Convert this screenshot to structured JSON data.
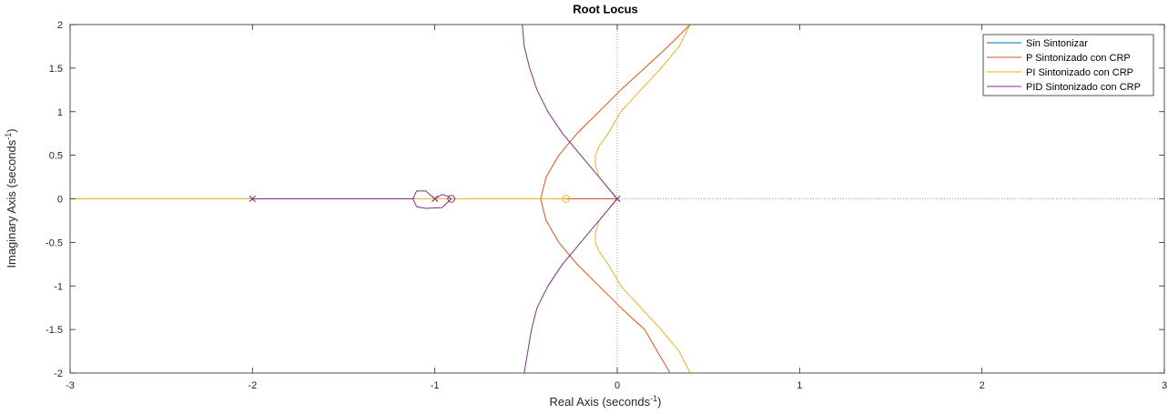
{
  "chart_data": {
    "type": "line",
    "title": "Root Locus",
    "xlabel": {
      "text": "Real Axis (seconds",
      "sup": "-1",
      "close": ")"
    },
    "ylabel": {
      "text": "Imaginary Axis (seconds",
      "sup": "-1",
      "close": ")"
    },
    "xlim": [
      -3,
      3
    ],
    "ylim": [
      -2,
      2
    ],
    "xticks": [
      -3,
      -2,
      -1,
      0,
      1,
      2,
      3
    ],
    "xtick_labels": [
      "-3",
      "-2",
      "-1",
      "0",
      "1",
      "2",
      "3"
    ],
    "yticks": [
      -2,
      -1.5,
      -1,
      -0.5,
      0,
      0.5,
      1,
      1.5,
      2
    ],
    "ytick_labels": [
      "-2",
      "-1.5",
      "-1",
      "-0.5",
      "0",
      "0.5",
      "1",
      "1.5",
      "2"
    ],
    "grid": false,
    "legend_position": "top-right",
    "colors": {
      "sin": "#0072BD",
      "p": "#D95319",
      "pi": "#EDB120",
      "pid": "#7E2F8E",
      "axis": "#262626",
      "zeroline": "#7f7f7f"
    },
    "series": [
      {
        "name": "Sin Sintonizar",
        "color": "#0072BD",
        "poles": [
          [
            -2,
            0
          ],
          [
            -1,
            0
          ],
          [
            0,
            0
          ]
        ],
        "zeros": [],
        "branches": [
          [
            [
              -2,
              0
            ],
            [
              -1,
              0
            ]
          ]
        ]
      },
      {
        "name": "P Sintonizado con CRP",
        "color": "#D95319",
        "poles": [
          [
            -2,
            0
          ],
          [
            -1,
            0
          ],
          [
            0,
            0
          ]
        ],
        "zeros": [],
        "branches": [
          [
            [
              -3,
              0
            ],
            [
              -2,
              0
            ]
          ],
          [
            [
              -2,
              0
            ],
            [
              -1,
              0
            ]
          ],
          [
            [
              -1,
              0
            ],
            [
              -0.42,
              0
            ]
          ],
          [
            [
              0,
              0
            ],
            [
              -0.42,
              0
            ]
          ],
          [
            [
              -0.42,
              0
            ],
            [
              -0.39,
              0.25
            ],
            [
              -0.32,
              0.5
            ],
            [
              -0.22,
              0.75
            ],
            [
              -0.1,
              1
            ],
            [
              0.02,
              1.25
            ],
            [
              0.15,
              1.5
            ],
            [
              0.28,
              1.75
            ],
            [
              0.4,
              2
            ]
          ],
          [
            [
              -0.42,
              0
            ],
            [
              -0.39,
              -0.25
            ],
            [
              -0.32,
              -0.5
            ],
            [
              -0.22,
              -0.75
            ],
            [
              -0.1,
              -1
            ],
            [
              0.02,
              -1.25
            ],
            [
              0.15,
              -1.5
            ],
            [
              0.22,
              -1.75
            ],
            [
              0.29,
              -2
            ]
          ]
        ]
      },
      {
        "name": "PI Sintonizado con CRP",
        "color": "#EDB120",
        "poles": [
          [
            -2,
            0
          ],
          [
            -1,
            0
          ],
          [
            0,
            0
          ]
        ],
        "zeros": [
          [
            -0.28,
            0
          ]
        ],
        "branches": [
          [
            [
              -3,
              0
            ],
            [
              -2,
              0
            ]
          ],
          [
            [
              -2,
              0
            ],
            [
              -1,
              0
            ]
          ],
          [
            [
              -1,
              0
            ],
            [
              -0.28,
              0
            ]
          ],
          [
            [
              0,
              0
            ],
            [
              -0.04,
              0.1
            ],
            [
              -0.1,
              0.25
            ],
            [
              -0.12,
              0.4
            ],
            [
              -0.12,
              0.5
            ],
            [
              -0.1,
              0.6
            ],
            [
              -0.05,
              0.75
            ],
            [
              0.02,
              1
            ],
            [
              0.13,
              1.25
            ],
            [
              0.24,
              1.5
            ],
            [
              0.34,
              1.75
            ],
            [
              0.4,
              2
            ]
          ],
          [
            [
              0,
              0
            ],
            [
              -0.04,
              -0.1
            ],
            [
              -0.1,
              -0.25
            ],
            [
              -0.12,
              -0.4
            ],
            [
              -0.12,
              -0.5
            ],
            [
              -0.1,
              -0.6
            ],
            [
              -0.05,
              -0.75
            ],
            [
              0.02,
              -1
            ],
            [
              0.13,
              -1.25
            ],
            [
              0.24,
              -1.5
            ],
            [
              0.34,
              -1.75
            ],
            [
              0.4,
              -2
            ]
          ]
        ]
      },
      {
        "name": "PID Sintonizado con CRP",
        "color": "#7E2F8E",
        "poles": [
          [
            -2,
            0
          ],
          [
            -1,
            0
          ],
          [
            0,
            0
          ]
        ],
        "zeros": [
          [
            -0.91,
            0
          ]
        ],
        "branches": [
          [
            [
              -2,
              0
            ],
            [
              -1.12,
              0
            ]
          ],
          [
            [
              -1,
              0
            ],
            [
              -1.05,
              0.09
            ],
            [
              -1.1,
              0.09
            ],
            [
              -1.12,
              0
            ],
            [
              -1.1,
              -0.09
            ],
            [
              -1.05,
              -0.11
            ],
            [
              -0.96,
              -0.1
            ],
            [
              -0.91,
              0
            ]
          ],
          [
            [
              -1,
              0
            ],
            [
              -0.96,
              0.05
            ],
            [
              -0.93,
              0.03
            ],
            [
              -0.91,
              0
            ]
          ],
          [
            [
              0,
              0
            ],
            [
              -0.1,
              0.25
            ],
            [
              -0.2,
              0.5
            ],
            [
              -0.3,
              0.75
            ],
            [
              -0.38,
              1
            ],
            [
              -0.44,
              1.25
            ],
            [
              -0.48,
              1.5
            ],
            [
              -0.51,
              1.75
            ],
            [
              -0.52,
              2
            ]
          ],
          [
            [
              0,
              0
            ],
            [
              -0.1,
              -0.25
            ],
            [
              -0.2,
              -0.5
            ],
            [
              -0.3,
              -0.75
            ],
            [
              -0.38,
              -1
            ],
            [
              -0.44,
              -1.25
            ],
            [
              -0.47,
              -1.5
            ],
            [
              -0.49,
              -1.75
            ],
            [
              -0.51,
              -2
            ]
          ]
        ]
      }
    ]
  }
}
